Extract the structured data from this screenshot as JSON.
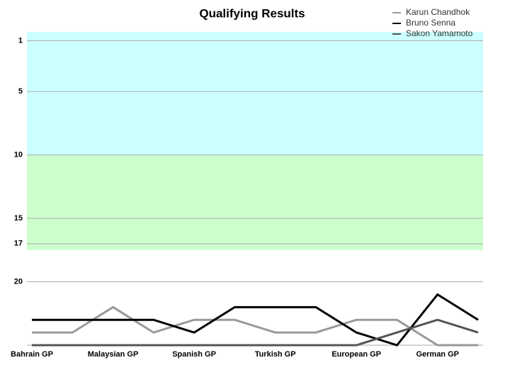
{
  "chart_data": {
    "type": "line",
    "title": "Qualifying Results",
    "categories": [
      "Bahrain GP",
      null,
      "Malaysian GP",
      null,
      "Spanish GP",
      null,
      "Turkish GP",
      null,
      "European GP",
      null,
      "German GP",
      null
    ],
    "series": [
      {
        "name": "Karun Chandhok",
        "color": "#999999",
        "values": [
          24,
          24,
          22,
          24,
          23,
          23,
          24,
          24,
          23,
          23,
          25,
          25
        ]
      },
      {
        "name": "Bruno Senna",
        "color": "#000000",
        "values": [
          23,
          23,
          23,
          23,
          24,
          22,
          22,
          22,
          24,
          25,
          21,
          23
        ]
      },
      {
        "name": "Sakon Yamamoto",
        "color": "#555555",
        "values": [
          25,
          25,
          25,
          25,
          25,
          25,
          25,
          25,
          25,
          24,
          23,
          24
        ]
      }
    ],
    "ylim": [
      25,
      0.3
    ],
    "yticks": [
      1,
      5,
      10,
      15,
      17,
      20
    ],
    "grid": true,
    "y_inverted": true,
    "bands": [
      {
        "from": 0.3,
        "to": 10,
        "color": "#ccffff"
      },
      {
        "from": 10,
        "to": 17.5,
        "color": "#ccffcc"
      }
    ],
    "legend": "top-right"
  }
}
